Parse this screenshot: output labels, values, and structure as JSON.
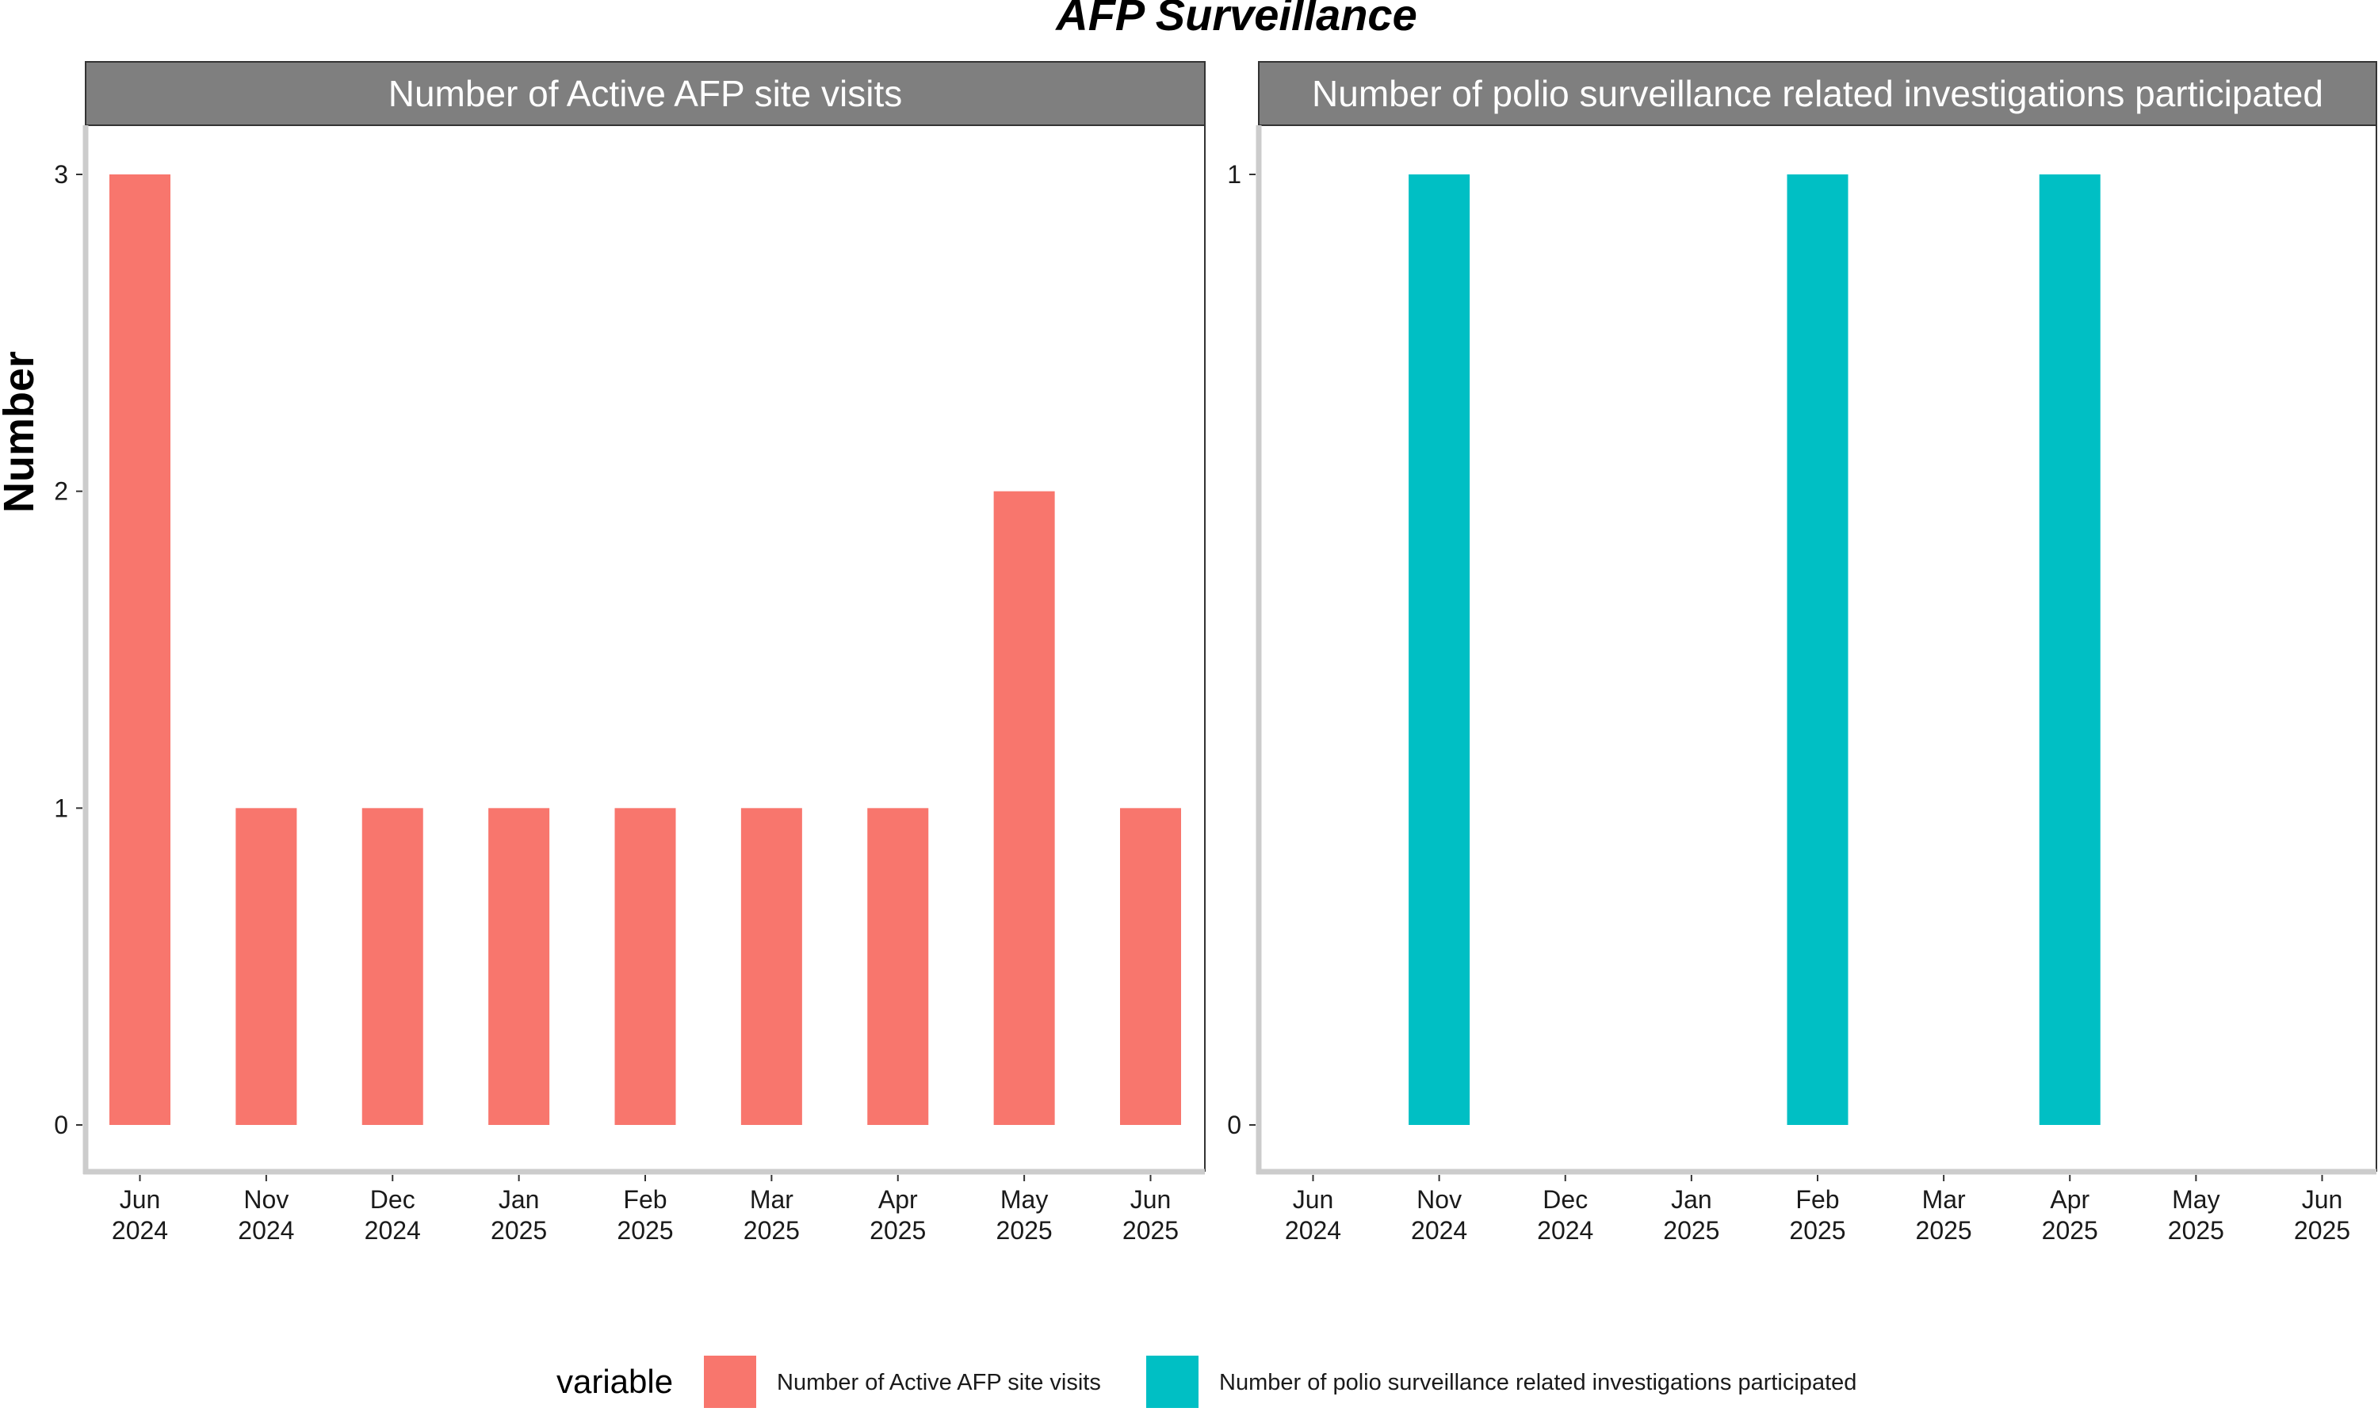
{
  "chart_data": {
    "type": "bar",
    "title": "AFP Surveillance",
    "ylabel": "Number",
    "xlabel": "",
    "categories": [
      "Jun 2024",
      "Nov 2024",
      "Dec 2024",
      "Jan 2025",
      "Feb 2025",
      "Mar 2025",
      "Apr 2025",
      "May 2025",
      "Jun 2025"
    ],
    "grid": false,
    "legend": {
      "title": "variable",
      "position": "bottom",
      "entries": [
        {
          "label": "Number of Active AFP site visits",
          "color": "#F8766D"
        },
        {
          "label": "Number of polio surveillance related investigations participated",
          "color": "#00BFC4"
        }
      ]
    },
    "panels": [
      {
        "strip": "Number of Active AFP site visits",
        "color": "#F8766D",
        "ylim": [
          0,
          3
        ],
        "yticks": [
          0,
          1,
          2,
          3
        ],
        "values": [
          3,
          1,
          1,
          1,
          1,
          1,
          1,
          2,
          1
        ]
      },
      {
        "strip": "Number of polio surveillance related investigations participated",
        "color": "#00BFC4",
        "ylim": [
          0,
          1
        ],
        "yticks": [
          0,
          1
        ],
        "values": [
          null,
          1,
          null,
          null,
          1,
          null,
          1,
          null,
          null
        ]
      }
    ]
  }
}
